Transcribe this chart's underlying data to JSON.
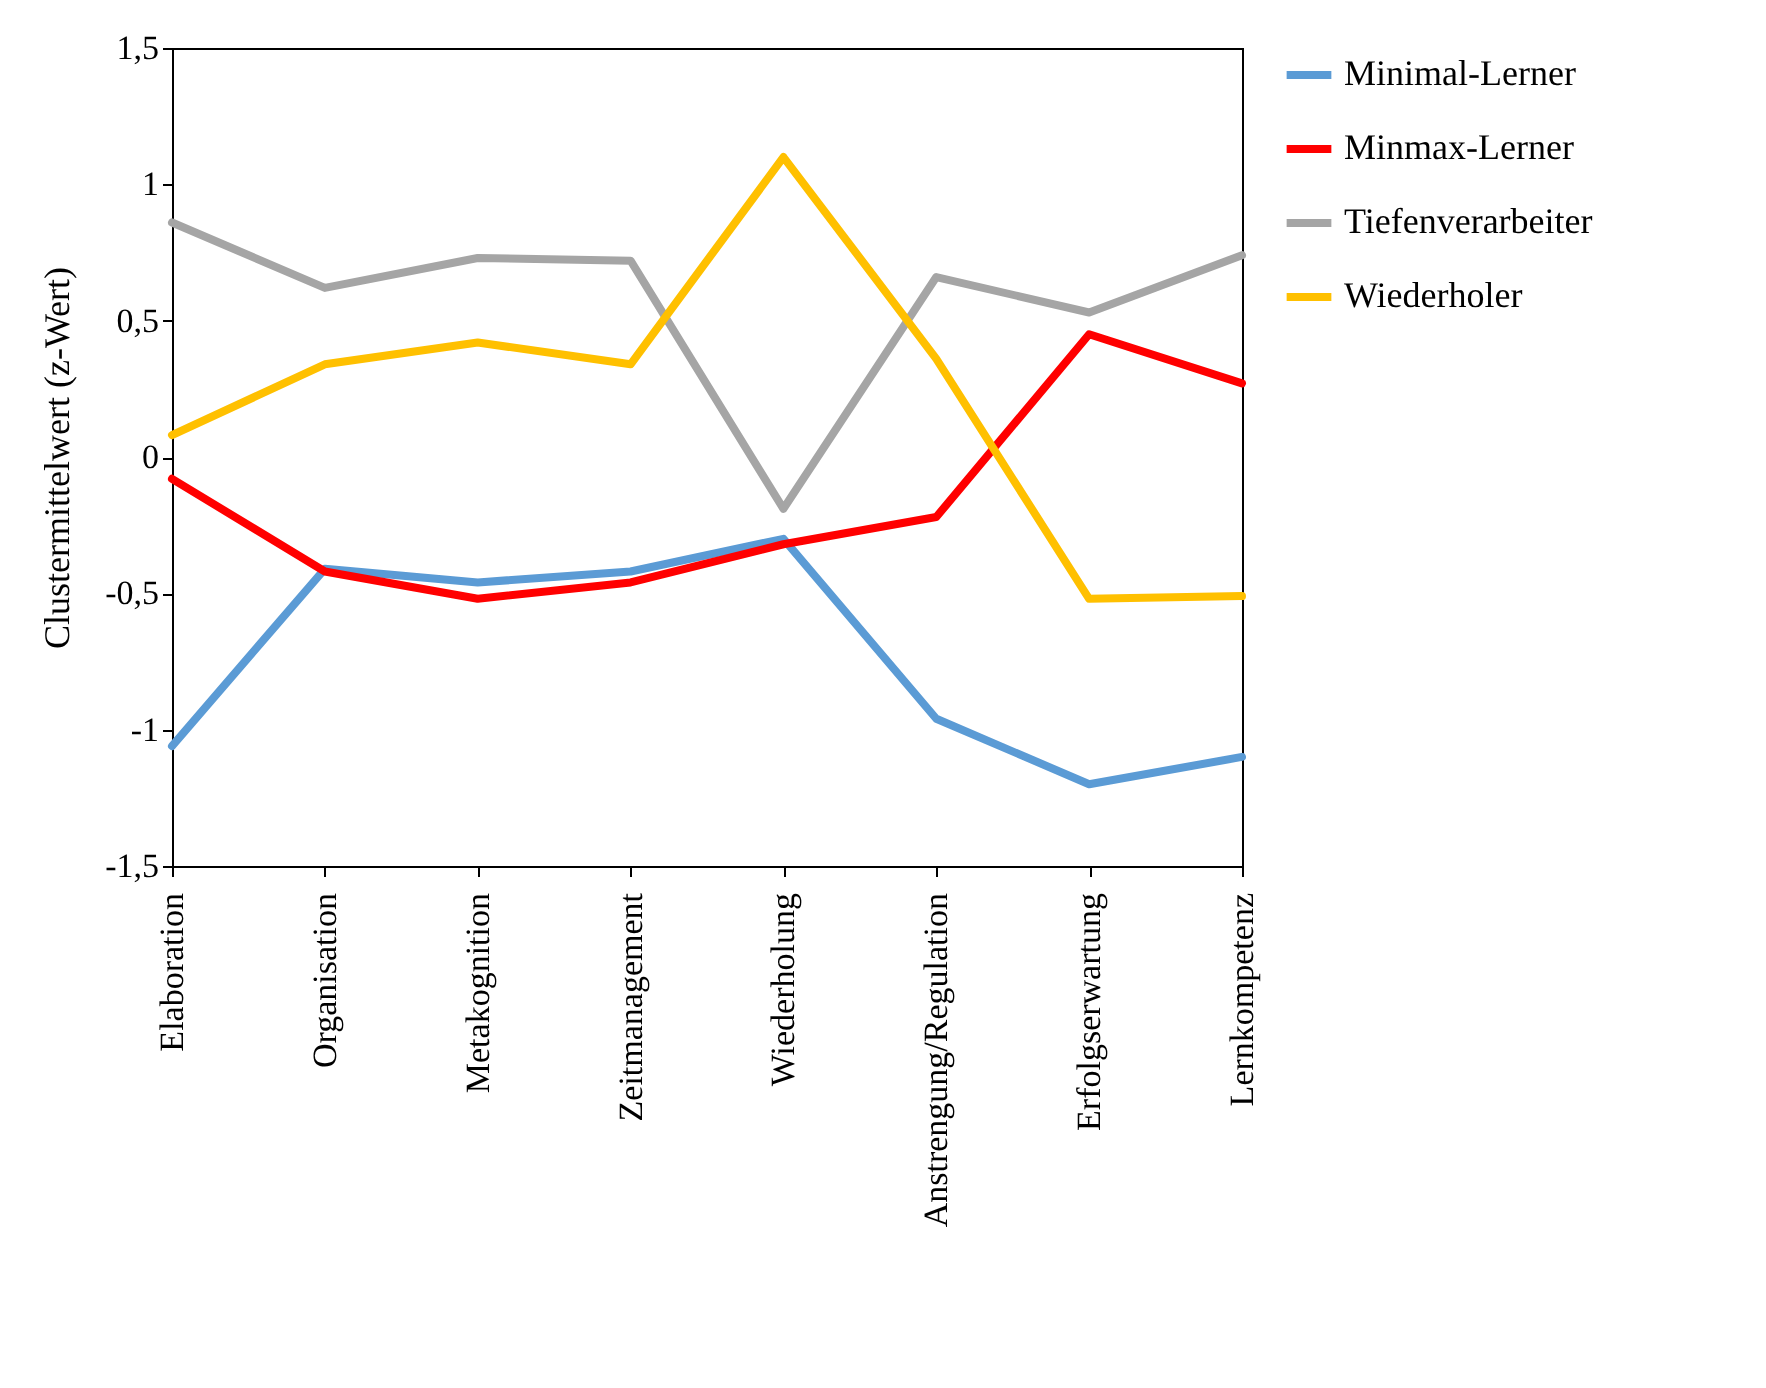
{
  "chart_data": {
    "type": "line",
    "ylabel": "Clustermittelwert (z-Wert)",
    "categories": [
      "Elaboration",
      "Organisation",
      "Metakognition",
      "Zeitmanagement",
      "Wiederholung",
      "Anstrengung/Regulation",
      "Erfolgserwartung",
      "Lernkompetenz"
    ],
    "series": [
      {
        "name": "Minimal-Lerner",
        "color": "#5b9bd5",
        "values": [
          -1.06,
          -0.41,
          -0.46,
          -0.42,
          -0.3,
          -0.96,
          -1.2,
          -1.1
        ]
      },
      {
        "name": "Minmax-Lerner",
        "color": "#ff0000",
        "values": [
          -0.08,
          -0.42,
          -0.52,
          -0.46,
          -0.32,
          -0.22,
          0.45,
          0.27
        ]
      },
      {
        "name": "Tiefenverarbeiter",
        "color": "#a5a5a5",
        "values": [
          0.86,
          0.62,
          0.73,
          0.72,
          -0.19,
          0.66,
          0.53,
          0.74
        ]
      },
      {
        "name": "Wiederholer",
        "color": "#ffc000",
        "values": [
          0.08,
          0.34,
          0.42,
          0.34,
          1.1,
          0.36,
          -0.52,
          -0.51
        ]
      }
    ],
    "ylim": [
      -1.5,
      1.5
    ],
    "yticks": [
      {
        "value": -1.5,
        "label": "-1,5"
      },
      -1,
      {
        "value": -0.5,
        "label": "-0,5"
      },
      0,
      {
        "value": 0.5,
        "label": "0,5"
      },
      1,
      {
        "value": 1.5,
        "label": "1,5"
      }
    ],
    "grid": false,
    "legend": "right",
    "marker": "none",
    "line_style": "solid"
  }
}
